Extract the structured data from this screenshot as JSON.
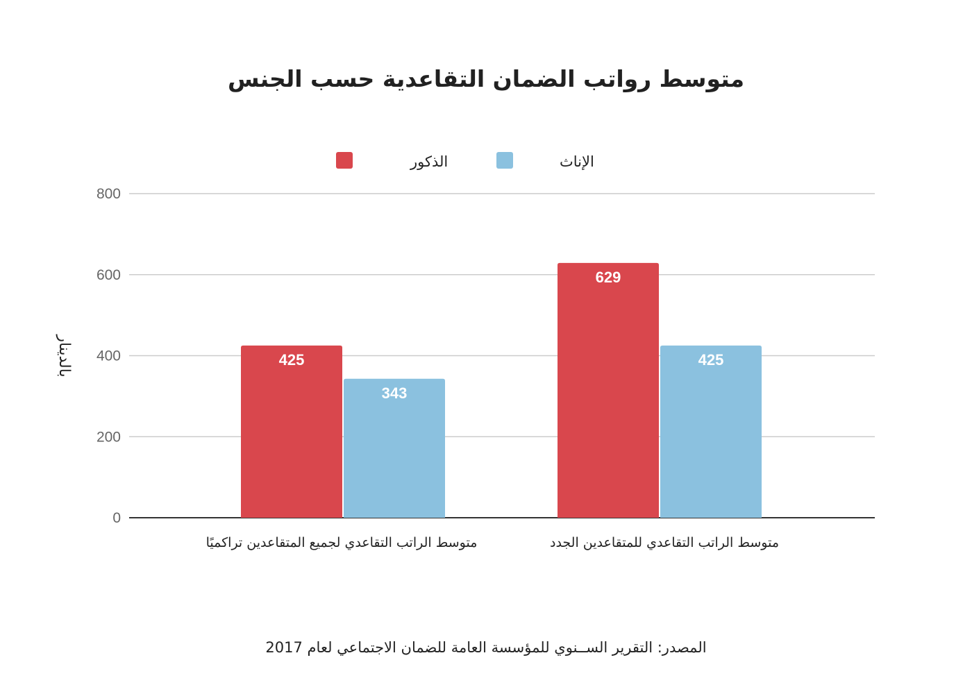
{
  "chart_data": {
    "type": "bar",
    "title": "متوسط رواتب الضمان التقاعدية حسب الجنس",
    "ylabel": "بالدينار",
    "xlabel": "",
    "categories": [
      "متوسط الراتب التقاعدي لجميع المتقاعدين تراكميًا",
      "متوسط الراتب التقاعدي للمتقاعدين الجدد"
    ],
    "series": [
      {
        "name": "الذكور",
        "color": "#d9474d",
        "values": [
          425,
          629
        ]
      },
      {
        "name": "الإناث",
        "color": "#8bc1df",
        "values": [
          343,
          425
        ]
      }
    ],
    "ylim": [
      0,
      800
    ],
    "yticks": [
      0,
      200,
      400,
      600,
      800
    ],
    "grid": true,
    "legend_position": "top",
    "data_labels": true
  },
  "footer": {
    "source": "المصدر: التقرير الســنوي للمؤسسة العامة للضمان الاجتماعي لعام 2017"
  }
}
